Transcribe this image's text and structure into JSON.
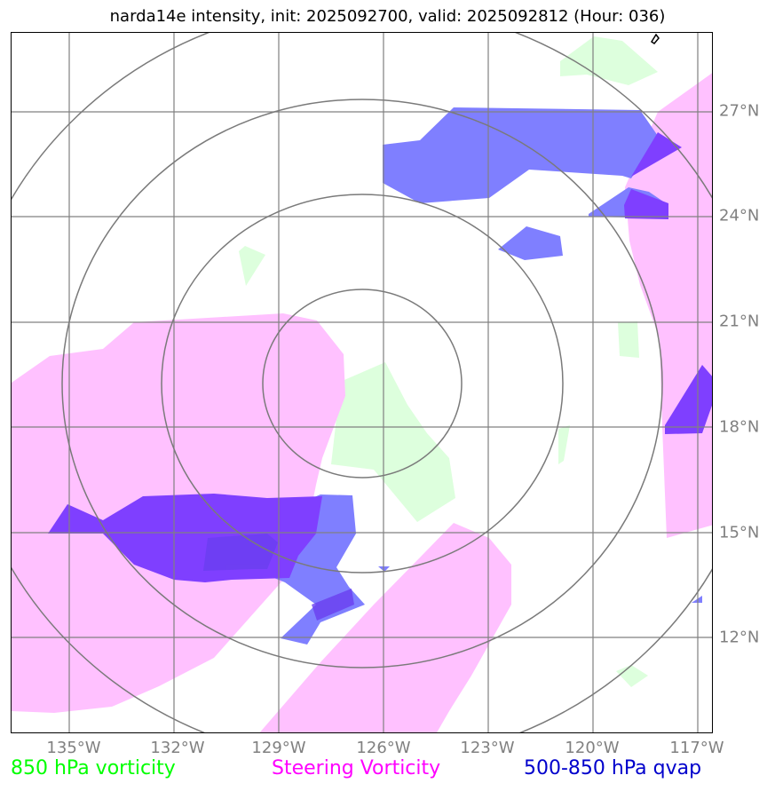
{
  "title": "narda14e intensity, init: 2025092700, valid: 2025092812 (Hour: 036)",
  "axes": {
    "longitude_labels": [
      "135°W",
      "132°W",
      "129°W",
      "126°W",
      "123°W",
      "120°W",
      "117°W"
    ],
    "latitude_labels": [
      "27°N",
      "24°N",
      "21°N",
      "18°N",
      "15°N",
      "12°N"
    ]
  },
  "legend": {
    "vorticity_850": "850 hPa vorticity",
    "steering_vorticity": "Steering Vorticity",
    "qvap_500_850": "500-850 hPa qvap"
  },
  "colors": {
    "vorticity_850": "#00ff00",
    "steering_vorticity": "#ff00ff",
    "qvap_500_850": "#0000ff",
    "grid": "#808080",
    "rings": "#7a7a7a"
  }
}
